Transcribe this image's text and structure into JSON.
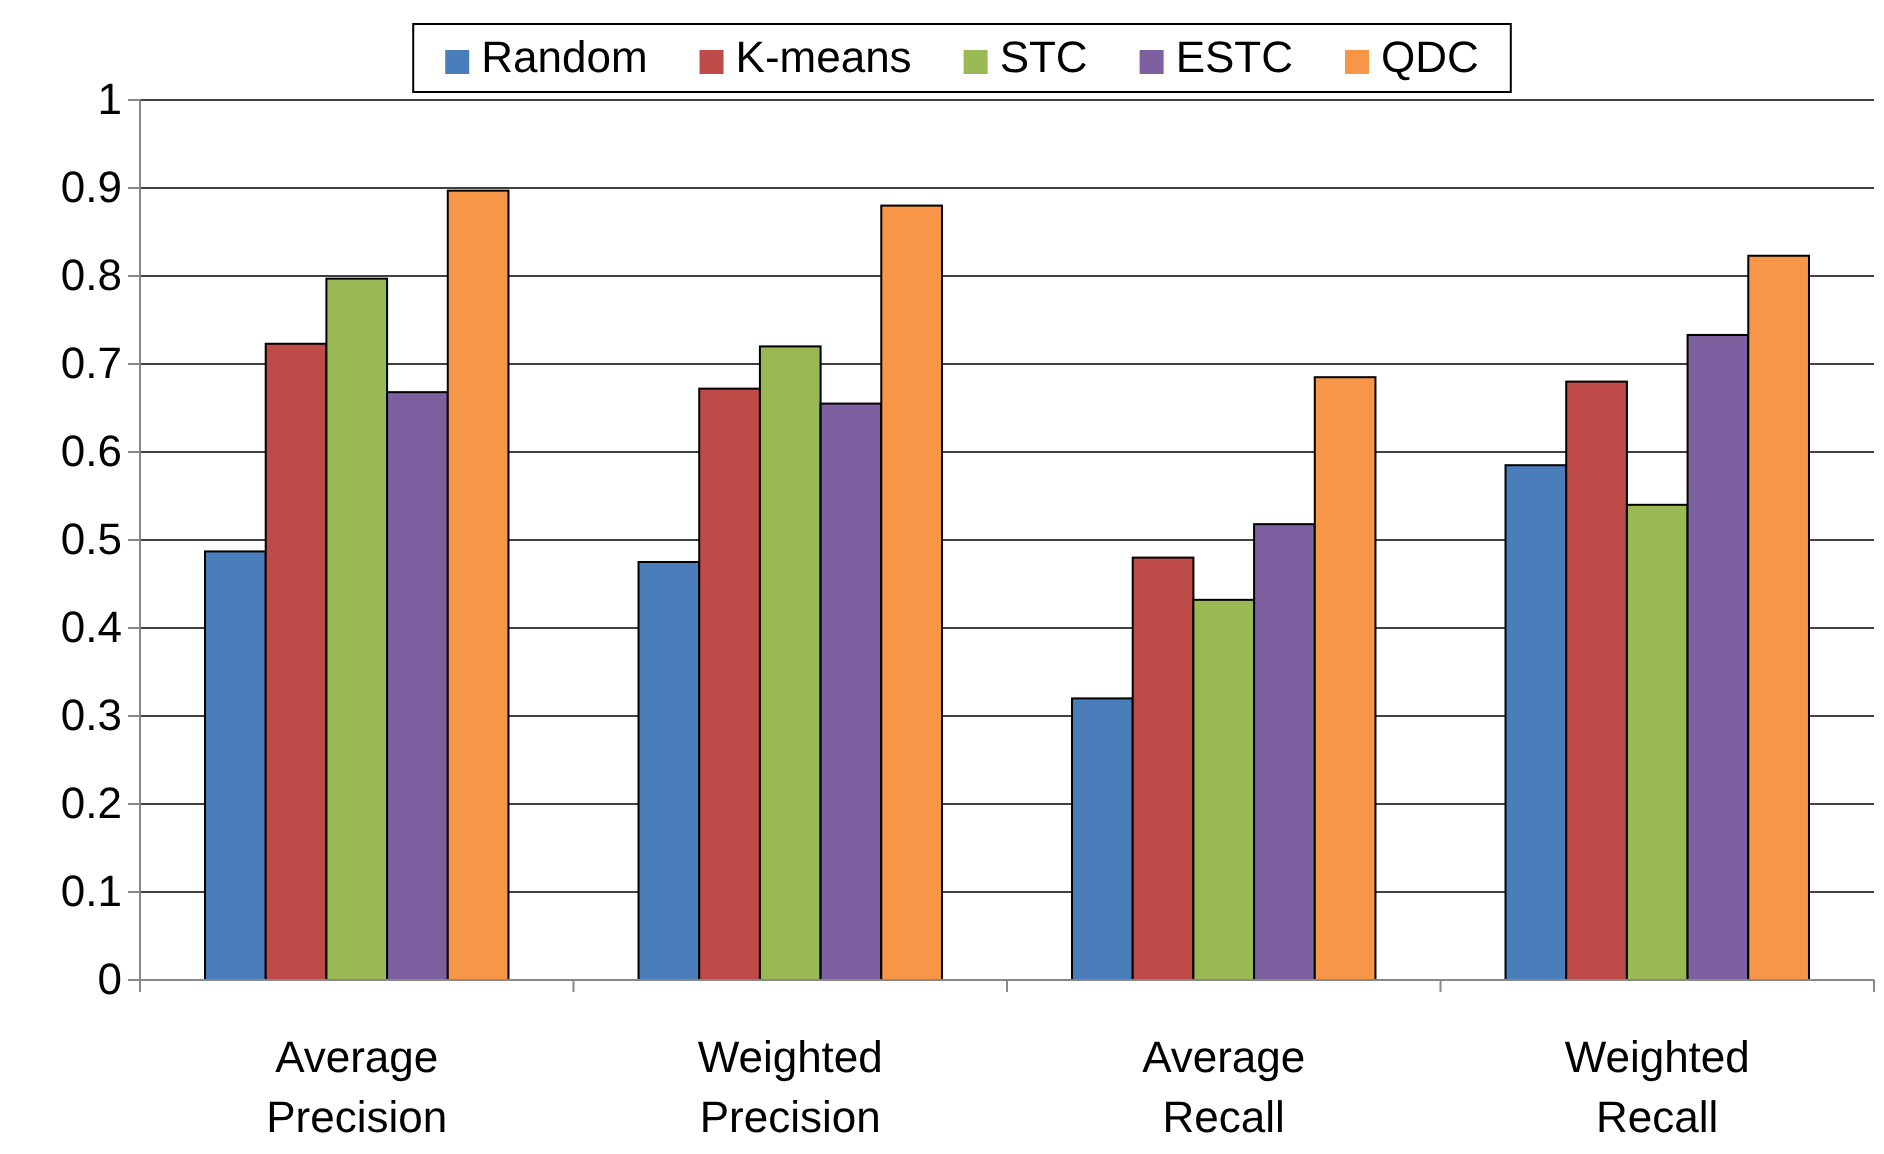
{
  "chart_data": {
    "type": "bar",
    "categories": [
      "Average Precision",
      "Weighted Precision",
      "Average Recall",
      "Weighted Recall"
    ],
    "series": [
      {
        "name": "Random",
        "color": "#4a7ebb",
        "values": [
          0.487,
          0.475,
          0.32,
          0.585
        ]
      },
      {
        "name": "K-means",
        "color": "#be4b48",
        "values": [
          0.723,
          0.672,
          0.48,
          0.68
        ]
      },
      {
        "name": "STC",
        "color": "#98b954",
        "values": [
          0.797,
          0.72,
          0.432,
          0.54
        ]
      },
      {
        "name": "ESTC",
        "color": "#7d60a0",
        "values": [
          0.668,
          0.655,
          0.518,
          0.733
        ]
      },
      {
        "name": "QDC",
        "color": "#f79646",
        "values": [
          0.897,
          0.88,
          0.685,
          0.823
        ]
      }
    ],
    "ylim": [
      0,
      1
    ],
    "yticks": [
      0,
      0.1,
      0.2,
      0.3,
      0.4,
      0.5,
      0.6,
      0.7,
      0.8,
      0.9,
      1
    ],
    "grid": "y",
    "legend": "top"
  }
}
